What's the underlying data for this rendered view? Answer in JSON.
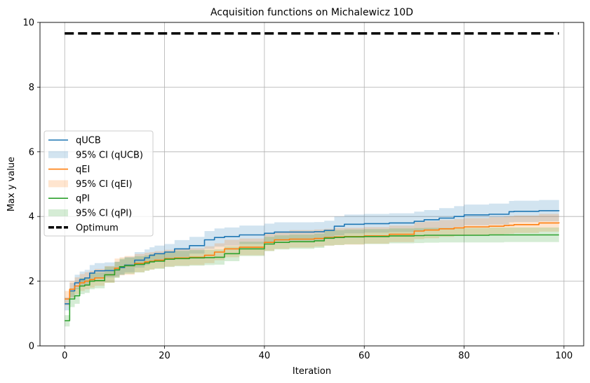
{
  "chart_data": {
    "type": "line",
    "title": "Acquisition functions on Michalewicz 10D",
    "xlabel": "Iteration",
    "ylabel": "Max y value",
    "xlim": [
      -4.95,
      103.95
    ],
    "ylim": [
      0,
      10
    ],
    "xticks": [
      0,
      20,
      40,
      60,
      80,
      100
    ],
    "yticks": [
      0,
      2,
      4,
      6,
      8,
      10
    ],
    "grid": true,
    "legend_position": "center-left",
    "legend": [
      "qUCB",
      "95% CI (qUCB)",
      "qEI",
      "95% CI (qEI)",
      "qPI",
      "95% CI (qPI)",
      "Optimum"
    ],
    "x_points": [
      0,
      1,
      2,
      3,
      4,
      5,
      6,
      8,
      10,
      11,
      12,
      14,
      16,
      17,
      18,
      20,
      22,
      25,
      28,
      30,
      32,
      35,
      40,
      42,
      45,
      50,
      52,
      54,
      56,
      60,
      65,
      70,
      72,
      75,
      78,
      80,
      85,
      88,
      89,
      90,
      95,
      99
    ],
    "series": [
      {
        "name": "qUCB",
        "color": "#1f77b4",
        "values": [
          1.3,
          1.7,
          1.95,
          2.05,
          2.1,
          2.25,
          2.32,
          2.33,
          2.35,
          2.42,
          2.5,
          2.65,
          2.72,
          2.8,
          2.85,
          2.9,
          3.0,
          3.1,
          3.28,
          3.35,
          3.38,
          3.43,
          3.48,
          3.52,
          3.52,
          3.53,
          3.57,
          3.7,
          3.76,
          3.78,
          3.8,
          3.85,
          3.9,
          3.95,
          4.0,
          4.05,
          4.07,
          4.07,
          4.15,
          4.16,
          4.18,
          4.19
        ],
        "ci_lower": [
          1.1,
          1.5,
          1.75,
          1.85,
          1.9,
          2.02,
          2.1,
          2.12,
          2.14,
          2.2,
          2.28,
          2.42,
          2.5,
          2.57,
          2.62,
          2.66,
          2.75,
          2.85,
          3.0,
          3.07,
          3.1,
          3.15,
          3.2,
          3.24,
          3.25,
          3.27,
          3.3,
          3.42,
          3.48,
          3.5,
          3.52,
          3.56,
          3.6,
          3.64,
          3.68,
          3.73,
          3.75,
          3.75,
          3.82,
          3.83,
          3.85,
          3.86
        ],
        "ci_upper": [
          1.5,
          1.95,
          2.2,
          2.3,
          2.35,
          2.5,
          2.56,
          2.58,
          2.6,
          2.67,
          2.75,
          2.9,
          2.98,
          3.05,
          3.1,
          3.15,
          3.27,
          3.37,
          3.55,
          3.63,
          3.66,
          3.72,
          3.78,
          3.82,
          3.82,
          3.83,
          3.87,
          4.0,
          4.06,
          4.08,
          4.1,
          4.15,
          4.2,
          4.26,
          4.32,
          4.37,
          4.4,
          4.4,
          4.48,
          4.49,
          4.51,
          4.52
        ]
      },
      {
        "name": "qEI",
        "color": "#ff7f0e",
        "values": [
          1.45,
          1.75,
          1.85,
          1.95,
          2.0,
          2.05,
          2.1,
          2.2,
          2.4,
          2.45,
          2.48,
          2.55,
          2.6,
          2.62,
          2.65,
          2.7,
          2.72,
          2.74,
          2.8,
          2.9,
          3.0,
          3.05,
          3.2,
          3.28,
          3.3,
          3.32,
          3.35,
          3.37,
          3.38,
          3.4,
          3.45,
          3.55,
          3.58,
          3.62,
          3.65,
          3.68,
          3.7,
          3.72,
          3.73,
          3.75,
          3.8,
          3.82
        ],
        "ci_lower": [
          1.25,
          1.5,
          1.6,
          1.7,
          1.75,
          1.8,
          1.86,
          1.95,
          2.12,
          2.18,
          2.2,
          2.28,
          2.33,
          2.36,
          2.4,
          2.45,
          2.48,
          2.5,
          2.56,
          2.65,
          2.74,
          2.8,
          2.94,
          3.0,
          3.04,
          3.07,
          3.1,
          3.12,
          3.13,
          3.16,
          3.21,
          3.3,
          3.33,
          3.37,
          3.4,
          3.42,
          3.45,
          3.46,
          3.47,
          3.49,
          3.53,
          3.55
        ],
        "ci_upper": [
          1.7,
          2.0,
          2.12,
          2.22,
          2.28,
          2.32,
          2.38,
          2.47,
          2.7,
          2.74,
          2.78,
          2.84,
          2.88,
          2.9,
          2.93,
          2.97,
          3.0,
          3.02,
          3.08,
          3.17,
          3.28,
          3.32,
          3.47,
          3.54,
          3.58,
          3.6,
          3.62,
          3.64,
          3.65,
          3.67,
          3.72,
          3.82,
          3.85,
          3.89,
          3.92,
          3.95,
          3.98,
          4.0,
          4.01,
          4.03,
          4.08,
          4.1
        ]
      },
      {
        "name": "qPI",
        "color": "#2ca02c",
        "values": [
          0.78,
          1.45,
          1.55,
          1.85,
          1.88,
          2.0,
          2.02,
          2.2,
          2.35,
          2.45,
          2.48,
          2.52,
          2.56,
          2.6,
          2.62,
          2.68,
          2.7,
          2.72,
          2.73,
          2.74,
          2.85,
          3.0,
          3.15,
          3.2,
          3.22,
          3.25,
          3.33,
          3.35,
          3.37,
          3.38,
          3.4,
          3.41,
          3.42,
          3.42,
          3.42,
          3.42,
          3.43,
          3.43,
          3.43,
          3.43,
          3.43,
          3.43
        ],
        "ci_lower": [
          0.6,
          1.2,
          1.3,
          1.6,
          1.64,
          1.75,
          1.78,
          1.95,
          2.1,
          2.2,
          2.23,
          2.27,
          2.32,
          2.36,
          2.38,
          2.44,
          2.46,
          2.48,
          2.5,
          2.51,
          2.62,
          2.78,
          2.93,
          2.98,
          3.0,
          3.03,
          3.1,
          3.12,
          3.14,
          3.15,
          3.17,
          3.18,
          3.19,
          3.2,
          3.2,
          3.2,
          3.2,
          3.21,
          3.21,
          3.21,
          3.21,
          3.21
        ],
        "ci_upper": [
          0.95,
          1.7,
          1.8,
          2.1,
          2.12,
          2.25,
          2.27,
          2.45,
          2.6,
          2.7,
          2.73,
          2.77,
          2.8,
          2.84,
          2.86,
          2.92,
          2.94,
          2.96,
          2.97,
          2.98,
          3.08,
          3.22,
          3.37,
          3.42,
          3.44,
          3.47,
          3.56,
          3.58,
          3.6,
          3.61,
          3.63,
          3.64,
          3.65,
          3.65,
          3.65,
          3.65,
          3.66,
          3.66,
          3.66,
          3.66,
          3.66,
          3.66
        ]
      }
    ],
    "optimum": {
      "name": "Optimum",
      "value": 9.66,
      "x_range": [
        0,
        99
      ],
      "color": "#000000"
    }
  }
}
